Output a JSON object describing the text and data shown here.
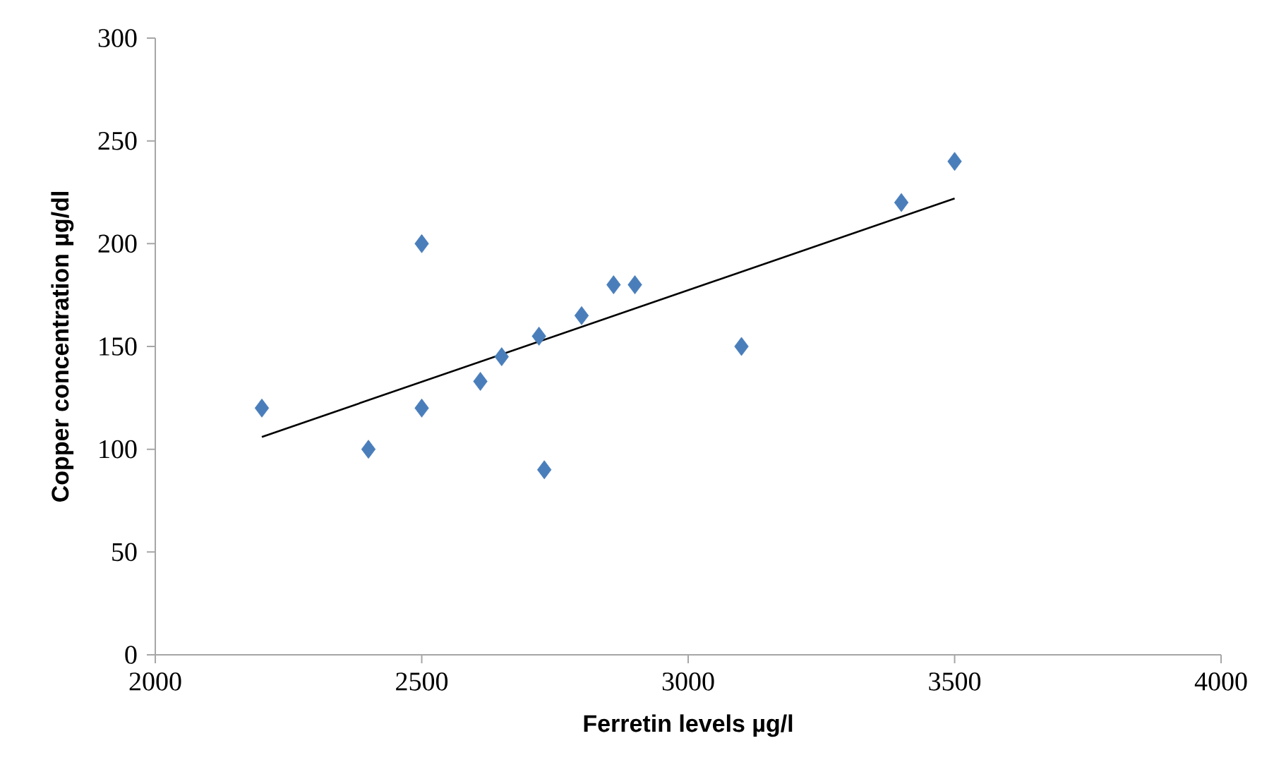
{
  "chart_data": {
    "type": "scatter",
    "xlabel": "Ferretin levels µg/l",
    "ylabel": "Copper concentration µg/dl",
    "marker": "diamond",
    "grid": false,
    "series": [
      {
        "color": "#4a7ebb",
        "x": [
          2200,
          2400,
          2500,
          2500,
          2610,
          2650,
          2720,
          2730,
          2800,
          2860,
          2900,
          3100,
          3400,
          3500
        ],
        "values": [
          120,
          100,
          200,
          120,
          133,
          145,
          155,
          90,
          165,
          180,
          180,
          150,
          220,
          240
        ]
      },
      {
        "type": "line",
        "marker": "none",
        "color": "#000000",
        "x": [
          2200,
          3500
        ],
        "values": [
          106,
          222
        ]
      }
    ],
    "xlim": [
      2000,
      4000
    ],
    "xticks": [
      2000,
      2500,
      3000,
      3500,
      4000
    ],
    "ylim": [
      0,
      300
    ],
    "yticks": [
      0,
      50,
      100,
      150,
      200,
      250,
      300
    ]
  }
}
